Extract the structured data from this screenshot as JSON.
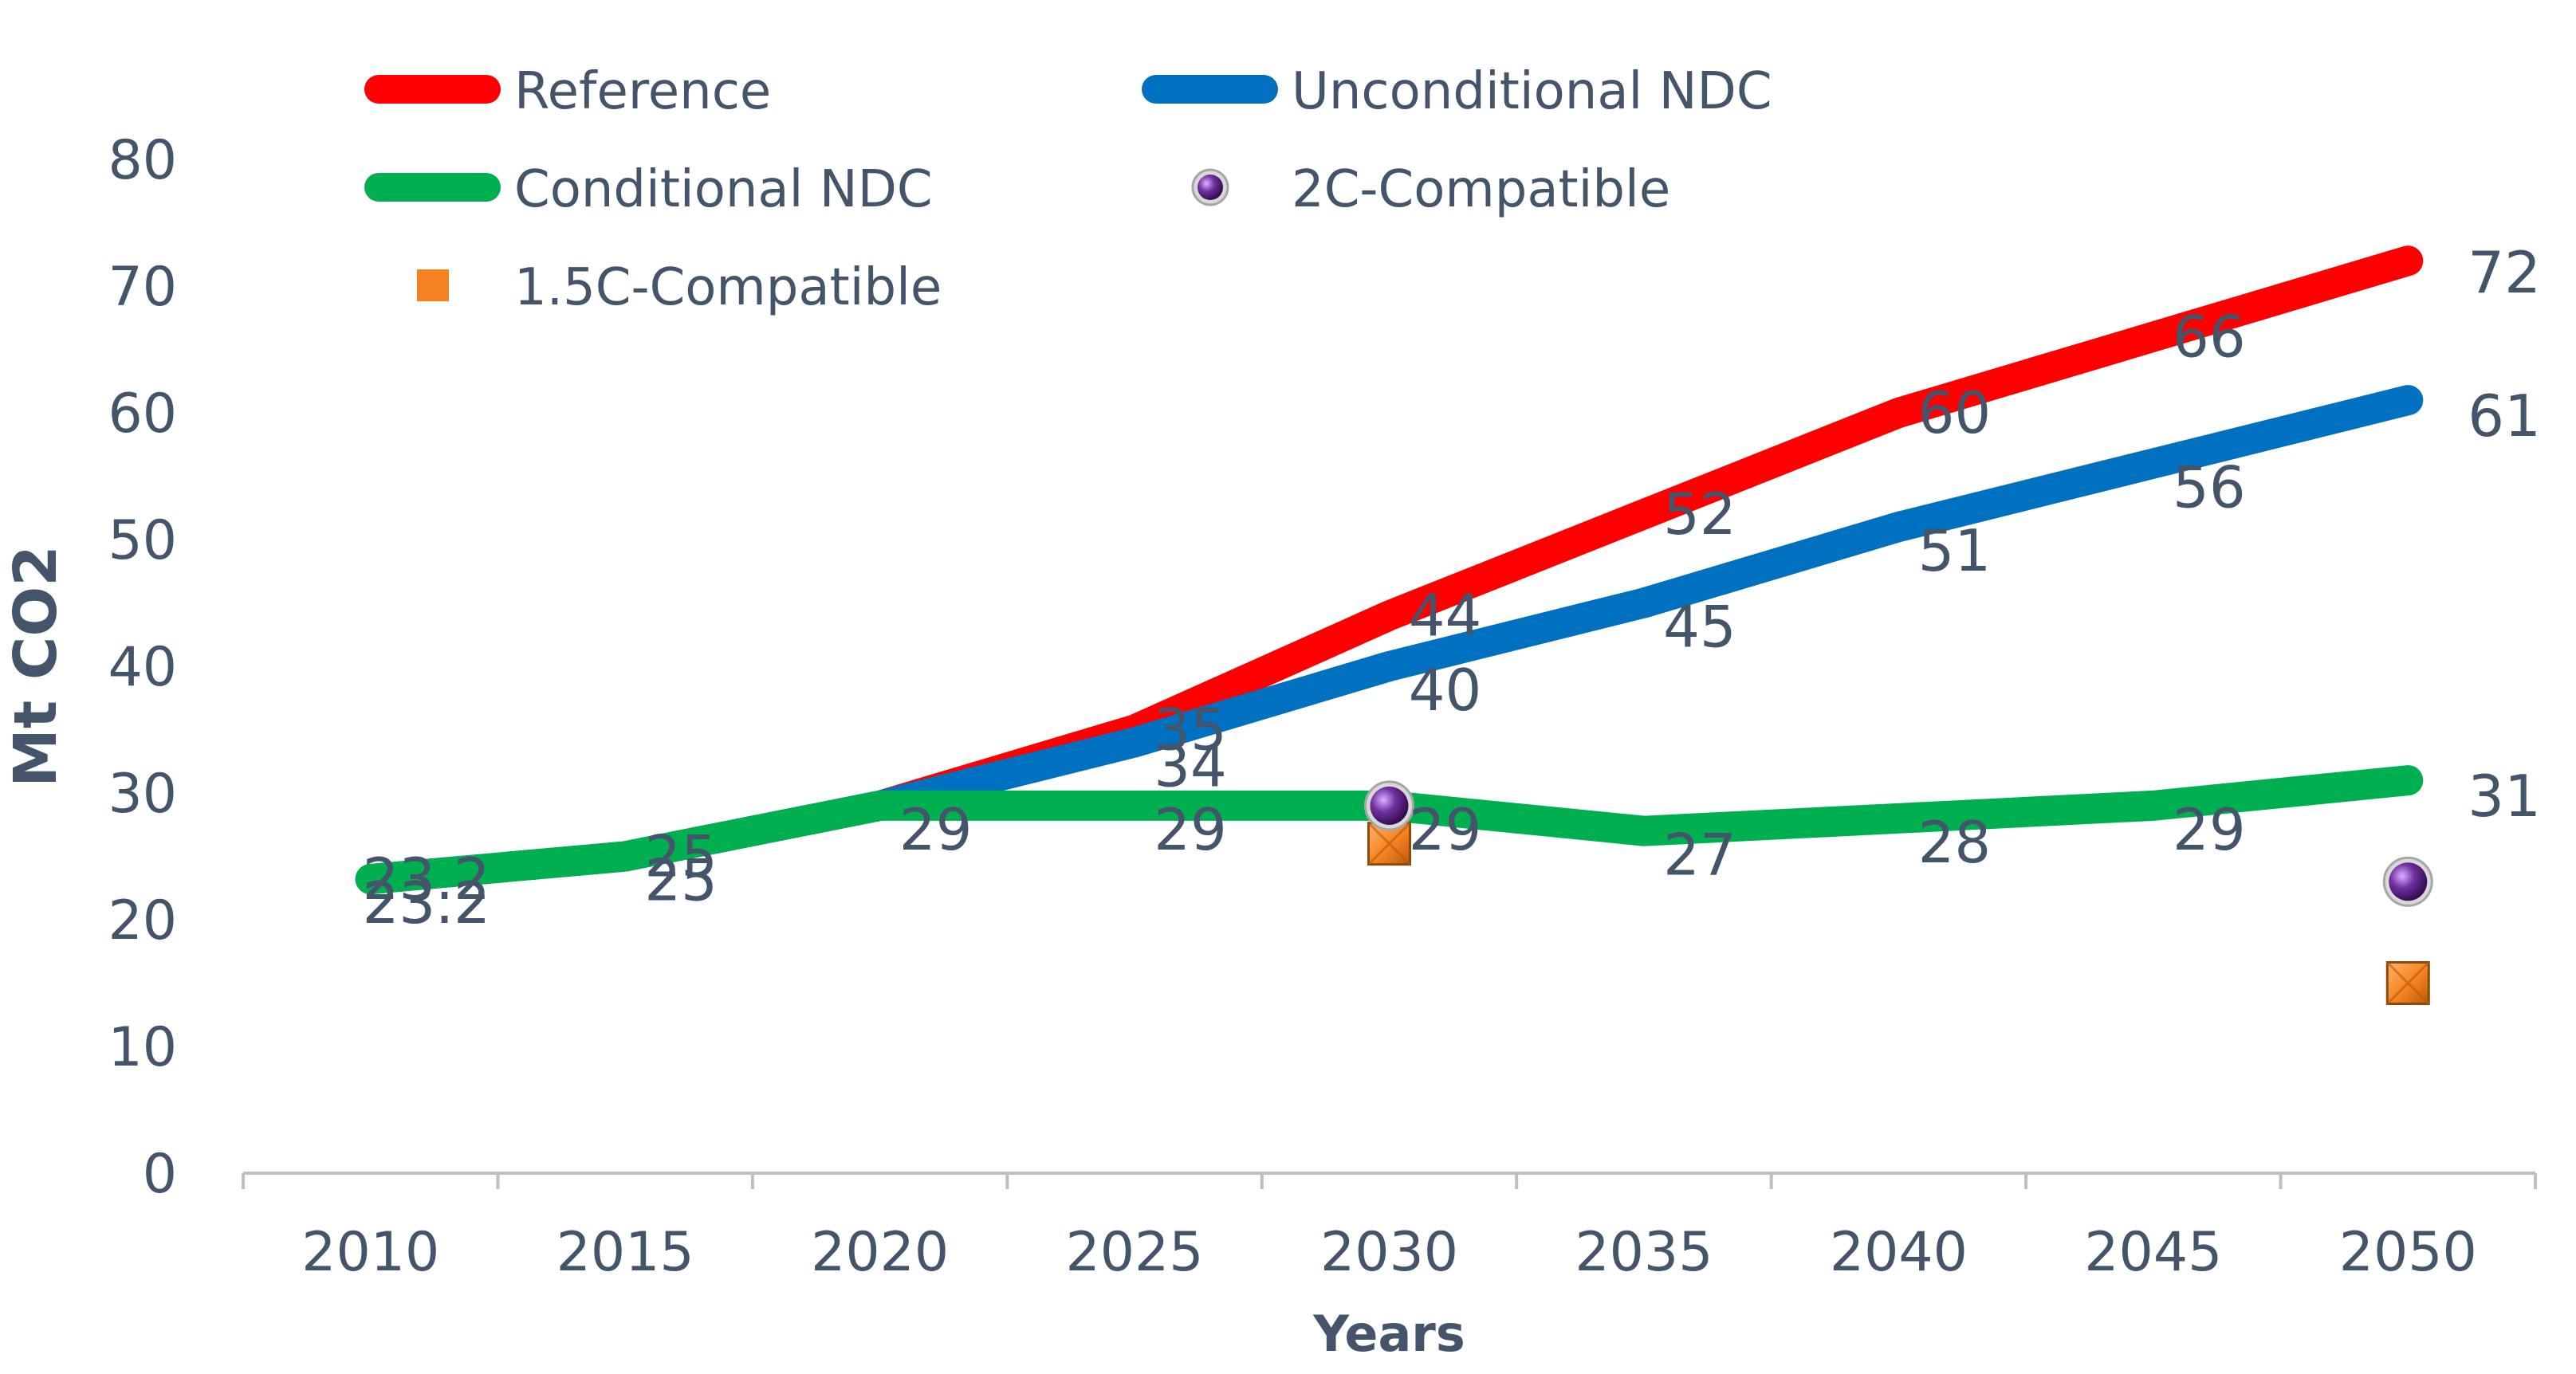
{
  "chart_data": {
    "type": "line",
    "title": "",
    "xlabel": "Years",
    "ylabel": "Mt CO2",
    "ylim": [
      0,
      80
    ],
    "yticks": [
      0,
      10,
      20,
      30,
      40,
      50,
      60,
      70,
      80
    ],
    "categories": [
      "2010",
      "2015",
      "2020",
      "2025",
      "2030",
      "2035",
      "2040",
      "2045",
      "2050"
    ],
    "grid": false,
    "legend_position": "top",
    "series": [
      {
        "name": "Reference",
        "kind": "line",
        "color": "#FF0000",
        "values": [
          23.2,
          25,
          29,
          35,
          44,
          52,
          60,
          66,
          72
        ],
        "labels": [
          "23.2",
          "25",
          "",
          "35",
          "44",
          "52",
          "60",
          "66",
          "72"
        ]
      },
      {
        "name": "Unconditional NDC",
        "kind": "line",
        "color": "#0070C0",
        "values": [
          23.2,
          25,
          29,
          34,
          40,
          45,
          51,
          56,
          61
        ],
        "labels": [
          "23.2",
          "25",
          "",
          "34",
          "40",
          "45",
          "51",
          "56",
          "61"
        ]
      },
      {
        "name": "Conditional NDC",
        "kind": "line",
        "color": "#00B050",
        "values": [
          23.2,
          25,
          29,
          29,
          29,
          27,
          28,
          29,
          31
        ],
        "labels": [
          "23.2",
          "25",
          "29",
          "29",
          "29",
          "27",
          "28",
          "29",
          "31"
        ]
      },
      {
        "name": "2C-Compatible",
        "kind": "marker",
        "color": "#7030A0",
        "values": [
          null,
          null,
          null,
          null,
          29,
          null,
          null,
          null,
          23
        ]
      },
      {
        "name": "1.5C-Compatible",
        "kind": "marker",
        "color": "#F58220",
        "values": [
          null,
          null,
          null,
          null,
          26,
          null,
          null,
          null,
          15
        ]
      }
    ]
  }
}
